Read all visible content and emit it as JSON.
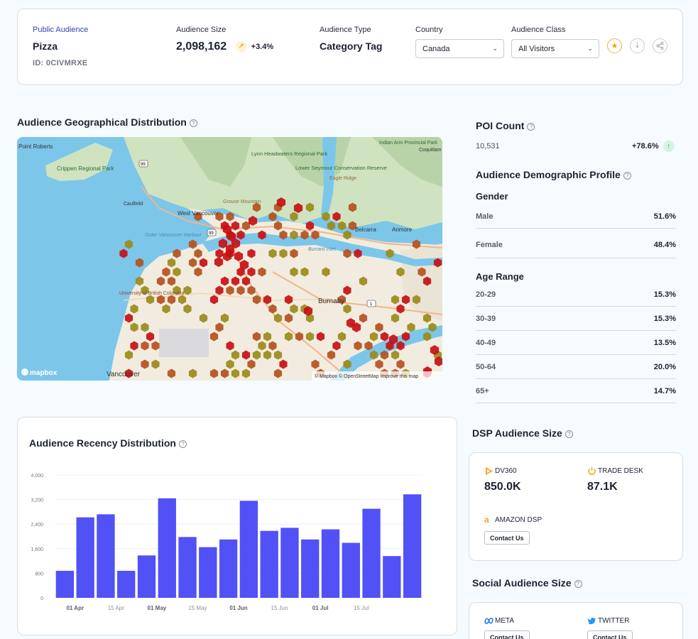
{
  "header": {
    "audience_source": "Public Audience",
    "audience_name": "Pizza",
    "audience_id": "ID: 0CIVMRXE",
    "size_label": "Audience Size",
    "size_value": "2,098,162",
    "size_trend": "+3.4%",
    "type_label": "Audience Type",
    "type_value": "Category Tag",
    "country_label": "Country",
    "country_value": "Canada",
    "class_label": "Audience Class",
    "class_value": "All Visitors"
  },
  "geo": {
    "title": "Audience Geographical Distribution",
    "map_attribution": "© Mapbox © OpenStreetMap Improve this map",
    "map_logo": "mapbox",
    "places": [
      "Point Roberts",
      "Crippen Regional Park",
      "Lynn Headwaters Regional Park",
      "Lower Seymour Conservation Reserve",
      "Grouse Mountain",
      "Eagle Ridge",
      "Belcarra",
      "Anmore",
      "Vancouver",
      "University of British Columbia",
      "Burnaby",
      "Outer Vancouver Harbour",
      "Indian Arm Provincial Park",
      "Coquitlam",
      "Caulfeild",
      "West Vancouver",
      "Burrard Inlet"
    ],
    "road_signs": [
      "99",
      "99",
      "1"
    ]
  },
  "poi": {
    "title": "POI Count",
    "value": "10,531",
    "trend": "+78.6%"
  },
  "demographics": {
    "title": "Audience Demographic Profile",
    "gender_title": "Gender",
    "gender": [
      {
        "label": "Male",
        "value": "51.6%"
      },
      {
        "label": "Female",
        "value": "48.4%"
      }
    ],
    "age_title": "Age Range",
    "age": [
      {
        "label": "20-29",
        "value": "15.3%"
      },
      {
        "label": "30-39",
        "value": "15.3%"
      },
      {
        "label": "40-49",
        "value": "13.5%"
      },
      {
        "label": "50-64",
        "value": "20.0%"
      },
      {
        "label": "65+",
        "value": "14.7%"
      }
    ]
  },
  "dsp": {
    "title": "DSP Audience Size",
    "vendors": [
      {
        "name": "DV360",
        "value": "850.0K"
      },
      {
        "name": "TRADE DESK",
        "value": "87.1K"
      },
      {
        "name": "AMAZON DSP",
        "action": "Contact Us"
      }
    ]
  },
  "social": {
    "title": "Social Audience Size",
    "vendors": [
      {
        "name": "META",
        "action": "Contact Us"
      },
      {
        "name": "TWITTER",
        "action": "Contact Us"
      }
    ]
  },
  "colors": {
    "bar": "#5151f5",
    "accent_gold": "#e8a414",
    "link": "#3344b5",
    "map_water": "#7cc6ea",
    "hex_high": "#c80f14",
    "hex_mid": "#b5501e",
    "hex_low": "#9a8a1a"
  },
  "chart_data": {
    "type": "bar",
    "title": "Audience Recency Distribution",
    "xlabel": "",
    "ylabel": "",
    "ylim": [
      0,
      4000
    ],
    "yticks": [
      "0",
      "800",
      "1,600",
      "2,400",
      "3,200",
      "4,000"
    ],
    "xtick_labels": [
      {
        "label": "01 Apr",
        "index": 1,
        "bold": true
      },
      {
        "label": "15 Apr",
        "index": 3,
        "bold": false
      },
      {
        "label": "01 May",
        "index": 5,
        "bold": true
      },
      {
        "label": "15 May",
        "index": 7,
        "bold": false
      },
      {
        "label": "01 Jun",
        "index": 9,
        "bold": true
      },
      {
        "label": "15 Jun",
        "index": 11,
        "bold": false
      },
      {
        "label": "01 Jul",
        "index": 13,
        "bold": true
      },
      {
        "label": "15 Jul",
        "index": 15,
        "bold": false
      }
    ],
    "values": [
      880,
      2620,
      2720,
      880,
      1380,
      3240,
      1980,
      1650,
      1900,
      3160,
      2180,
      2280,
      1900,
      2230,
      1790,
      2900,
      1360,
      3370
    ]
  }
}
